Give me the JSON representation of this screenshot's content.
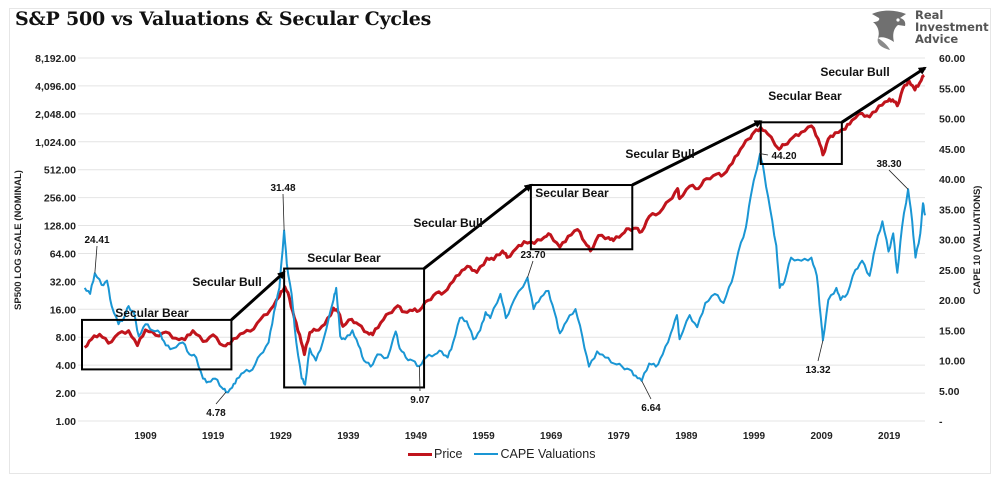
{
  "header": {
    "title": "S&P 500 vs Valuations & Secular Cycles",
    "brand": [
      "Real",
      "Investment",
      "Advice"
    ],
    "brand_icon": "eagle-head-icon"
  },
  "colors": {
    "price": "#c0141c",
    "cape": "#1a96d4",
    "annotation": "#000000",
    "grid": "#e4e4e4",
    "logo": "#666666"
  },
  "chart_data": {
    "type": "line",
    "title": "S&P 500 vs Valuations & Secular Cycles",
    "xlabel": "",
    "ylabel": "SP500 LOG SCALE (NOMINAL)",
    "y2label": "CAPE 10 (VALUATIONS)",
    "x_range": [
      1899.6,
      2024.3
    ],
    "x_ticks": [
      "1909",
      "1919",
      "1929",
      "1939",
      "1949",
      "1959",
      "1969",
      "1979",
      "1989",
      "1999",
      "2009",
      "2019"
    ],
    "y_scale": "log2",
    "ylim": [
      1,
      8192
    ],
    "y_ticks": [
      "1.00",
      "2.00",
      "4.00",
      "8.00",
      "16.00",
      "32.00",
      "64.00",
      "128.00",
      "256.00",
      "512.00",
      "1,024.00",
      "2,048.00",
      "4,096.00",
      "8,192.00"
    ],
    "y2lim": [
      0,
      60
    ],
    "y2_ticks": [
      "-",
      "5.00",
      "10.00",
      "15.00",
      "20.00",
      "25.00",
      "30.00",
      "35.00",
      "40.00",
      "45.00",
      "50.00",
      "55.00",
      "60.00"
    ],
    "grid": true,
    "legend_position": "bottom",
    "legend": [
      "Price",
      "CAPE Valuations"
    ],
    "series": [
      {
        "name": "Price",
        "axis": "left",
        "color": "#c0141c",
        "points": [
          [
            1900.0,
            6.2
          ],
          [
            1901.0,
            7.6
          ],
          [
            1902.2,
            8.6
          ],
          [
            1903.5,
            6.9
          ],
          [
            1905.0,
            8.8
          ],
          [
            1906.5,
            9.4
          ],
          [
            1907.8,
            6.5
          ],
          [
            1909.0,
            9.6
          ],
          [
            1910.5,
            8.4
          ],
          [
            1912.0,
            9.1
          ],
          [
            1913.5,
            7.8
          ],
          [
            1914.8,
            7.5
          ],
          [
            1916.0,
            9.4
          ],
          [
            1917.5,
            7.2
          ],
          [
            1919.0,
            8.5
          ],
          [
            1920.5,
            6.5
          ],
          [
            1921.5,
            6.8
          ],
          [
            1923.0,
            8.7
          ],
          [
            1924.5,
            9.3
          ],
          [
            1926.0,
            12.5
          ],
          [
            1927.5,
            16.0
          ],
          [
            1928.8,
            22.0
          ],
          [
            1929.6,
            28.0
          ],
          [
            1930.3,
            21.0
          ],
          [
            1931.0,
            13.0
          ],
          [
            1931.8,
            8.5
          ],
          [
            1932.5,
            5.2
          ],
          [
            1933.3,
            9.0
          ],
          [
            1934.2,
            9.5
          ],
          [
            1935.5,
            11.0
          ],
          [
            1936.8,
            16.5
          ],
          [
            1937.5,
            15.0
          ],
          [
            1938.2,
            10.5
          ],
          [
            1939.5,
            12.5
          ],
          [
            1940.5,
            11.0
          ],
          [
            1941.8,
            9.0
          ],
          [
            1942.6,
            8.5
          ],
          [
            1943.8,
            11.5
          ],
          [
            1945.0,
            14.5
          ],
          [
            1946.3,
            17.5
          ],
          [
            1947.3,
            15.0
          ],
          [
            1948.5,
            15.5
          ],
          [
            1949.5,
            15.5
          ],
          [
            1950.8,
            20.0
          ],
          [
            1952.0,
            24.0
          ],
          [
            1953.2,
            24.5
          ],
          [
            1954.5,
            32.0
          ],
          [
            1955.8,
            42.0
          ],
          [
            1957.0,
            46.0
          ],
          [
            1958.0,
            40.0
          ],
          [
            1959.5,
            57.0
          ],
          [
            1960.5,
            55.0
          ],
          [
            1961.8,
            68.0
          ],
          [
            1962.5,
            58.0
          ],
          [
            1963.8,
            72.0
          ],
          [
            1965.0,
            86.0
          ],
          [
            1966.5,
            82.0
          ],
          [
            1968.0,
            96.0
          ],
          [
            1968.9,
            102.0
          ],
          [
            1970.3,
            75.0
          ],
          [
            1971.5,
            98.0
          ],
          [
            1972.9,
            116.0
          ],
          [
            1974.0,
            84.0
          ],
          [
            1974.8,
            68.0
          ],
          [
            1976.0,
            100.0
          ],
          [
            1977.5,
            95.0
          ],
          [
            1978.2,
            88.0
          ],
          [
            1979.5,
            103.0
          ],
          [
            1980.5,
            118.0
          ],
          [
            1981.5,
            120.0
          ],
          [
            1982.4,
            110.0
          ],
          [
            1983.5,
            160.0
          ],
          [
            1985.0,
            175.0
          ],
          [
            1986.5,
            240.0
          ],
          [
            1987.7,
            320.0
          ],
          [
            1988.0,
            250.0
          ],
          [
            1989.5,
            340.0
          ],
          [
            1990.8,
            320.0
          ],
          [
            1992.0,
            410.0
          ],
          [
            1993.5,
            460.0
          ],
          [
            1994.5,
            455.0
          ],
          [
            1995.8,
            600.0
          ],
          [
            1997.0,
            850.0
          ],
          [
            1998.2,
            1100.0
          ],
          [
            1999.0,
            1300.0
          ],
          [
            2000.0,
            1460.0
          ],
          [
            2001.0,
            1250.0
          ],
          [
            2002.7,
            850.0
          ],
          [
            2003.5,
            950.0
          ],
          [
            2004.8,
            1150.0
          ],
          [
            2006.0,
            1300.0
          ],
          [
            2007.5,
            1520.0
          ],
          [
            2008.5,
            1100.0
          ],
          [
            2009.2,
            740.0
          ],
          [
            2010.0,
            1100.0
          ],
          [
            2011.0,
            1280.0
          ],
          [
            2012.5,
            1400.0
          ],
          [
            2013.5,
            1750.0
          ],
          [
            2015.0,
            2070.0
          ],
          [
            2016.1,
            1900.0
          ],
          [
            2017.5,
            2500.0
          ],
          [
            2018.8,
            2800.0
          ],
          [
            2019.5,
            2900.0
          ],
          [
            2020.2,
            2500.0
          ],
          [
            2021.0,
            3800.0
          ],
          [
            2021.9,
            4700.0
          ],
          [
            2022.8,
            3700.0
          ],
          [
            2023.5,
            4400.0
          ],
          [
            2024.2,
            5300.0
          ]
        ]
      },
      {
        "name": "CAPE Valuations",
        "axis": "right",
        "color": "#1a96d4",
        "points": [
          [
            1900.0,
            22.0
          ],
          [
            1900.8,
            21.0
          ],
          [
            1901.5,
            24.41
          ],
          [
            1902.5,
            22.5
          ],
          [
            1903.3,
            23.2
          ],
          [
            1904.0,
            19.0
          ],
          [
            1905.0,
            16.0
          ],
          [
            1905.8,
            17.0
          ],
          [
            1906.5,
            19.0
          ],
          [
            1907.3,
            17.8
          ],
          [
            1908.0,
            14.0
          ],
          [
            1909.0,
            16.0
          ],
          [
            1910.0,
            15.0
          ],
          [
            1911.2,
            14.5
          ],
          [
            1912.0,
            12.5
          ],
          [
            1913.0,
            12.0
          ],
          [
            1914.5,
            13.0
          ],
          [
            1915.5,
            11.0
          ],
          [
            1916.5,
            10.5
          ],
          [
            1917.5,
            7.0
          ],
          [
            1918.3,
            6.5
          ],
          [
            1919.3,
            7.0
          ],
          [
            1920.3,
            5.5
          ],
          [
            1920.9,
            4.78
          ],
          [
            1921.8,
            5.5
          ],
          [
            1922.5,
            7.0
          ],
          [
            1923.5,
            8.0
          ],
          [
            1924.8,
            8.5
          ],
          [
            1926.0,
            11.0
          ],
          [
            1927.2,
            13.0
          ],
          [
            1928.0,
            18.0
          ],
          [
            1928.8,
            22.0
          ],
          [
            1929.5,
            31.48
          ],
          [
            1929.9,
            26.0
          ],
          [
            1930.6,
            21.0
          ],
          [
            1931.3,
            13.0
          ],
          [
            1932.1,
            7.0
          ],
          [
            1932.6,
            6.0
          ],
          [
            1933.3,
            12.0
          ],
          [
            1934.2,
            10.0
          ],
          [
            1935.2,
            13.0
          ],
          [
            1936.8,
            20.0
          ],
          [
            1937.2,
            22.0
          ],
          [
            1937.8,
            14.0
          ],
          [
            1938.5,
            13.5
          ],
          [
            1939.6,
            15.0
          ],
          [
            1940.5,
            12.5
          ],
          [
            1941.3,
            10.0
          ],
          [
            1942.3,
            9.0
          ],
          [
            1943.3,
            11.0
          ],
          [
            1944.8,
            10.5
          ],
          [
            1946.0,
            14.8
          ],
          [
            1946.6,
            12.0
          ],
          [
            1947.5,
            10.5
          ],
          [
            1948.5,
            10.0
          ],
          [
            1949.5,
            9.07
          ],
          [
            1950.5,
            10.5
          ],
          [
            1951.8,
            11.0
          ],
          [
            1952.8,
            11.5
          ],
          [
            1953.7,
            10.5
          ],
          [
            1954.5,
            13.0
          ],
          [
            1955.5,
            17.0
          ],
          [
            1956.5,
            16.5
          ],
          [
            1957.5,
            13.5
          ],
          [
            1958.5,
            15.0
          ],
          [
            1959.3,
            18.0
          ],
          [
            1960.0,
            17.0
          ],
          [
            1961.5,
            21.0
          ],
          [
            1962.3,
            17.0
          ],
          [
            1963.5,
            20.0
          ],
          [
            1965.5,
            23.7
          ],
          [
            1966.4,
            18.5
          ],
          [
            1967.5,
            20.5
          ],
          [
            1968.6,
            21.5
          ],
          [
            1969.5,
            18.0
          ],
          [
            1970.3,
            14.5
          ],
          [
            1971.3,
            16.5
          ],
          [
            1972.6,
            18.5
          ],
          [
            1973.6,
            14.0
          ],
          [
            1974.6,
            9.0
          ],
          [
            1975.8,
            11.5
          ],
          [
            1977.0,
            10.5
          ],
          [
            1978.3,
            9.5
          ],
          [
            1979.5,
            9.0
          ],
          [
            1980.6,
            8.5
          ],
          [
            1981.5,
            7.5
          ],
          [
            1982.4,
            6.64
          ],
          [
            1983.5,
            9.5
          ],
          [
            1984.5,
            9.0
          ],
          [
            1985.5,
            11.0
          ],
          [
            1986.7,
            14.5
          ],
          [
            1987.6,
            17.5
          ],
          [
            1988.0,
            13.5
          ],
          [
            1989.5,
            17.5
          ],
          [
            1990.6,
            15.5
          ],
          [
            1991.8,
            19.5
          ],
          [
            1993.2,
            21.0
          ],
          [
            1994.5,
            19.5
          ],
          [
            1995.7,
            23.0
          ],
          [
            1996.7,
            28.0
          ],
          [
            1997.8,
            32.0
          ],
          [
            1998.5,
            37.0
          ],
          [
            1999.9,
            44.2
          ],
          [
            2000.5,
            41.0
          ],
          [
            2001.4,
            35.0
          ],
          [
            2002.3,
            29.0
          ],
          [
            2002.8,
            22.0
          ],
          [
            2003.5,
            23.0
          ],
          [
            2004.5,
            27.0
          ],
          [
            2006.0,
            26.5
          ],
          [
            2007.5,
            27.0
          ],
          [
            2008.3,
            24.0
          ],
          [
            2008.9,
            17.0
          ],
          [
            2009.2,
            13.32
          ],
          [
            2010.0,
            20.0
          ],
          [
            2011.2,
            22.0
          ],
          [
            2011.8,
            20.0
          ],
          [
            2012.8,
            21.0
          ],
          [
            2014.0,
            25.0
          ],
          [
            2015.0,
            26.5
          ],
          [
            2016.1,
            24.0
          ],
          [
            2017.0,
            29.0
          ],
          [
            2018.0,
            33.0
          ],
          [
            2018.9,
            28.0
          ],
          [
            2019.6,
            31.0
          ],
          [
            2020.2,
            24.5
          ],
          [
            2020.9,
            32.0
          ],
          [
            2021.8,
            38.3
          ],
          [
            2022.4,
            33.0
          ],
          [
            2022.9,
            27.0
          ],
          [
            2023.6,
            31.0
          ],
          [
            2024.0,
            36.0
          ],
          [
            2024.3,
            34.0
          ]
        ]
      }
    ],
    "annotations": {
      "value_labels": [
        {
          "text": "24.41",
          "series": "CAPE Valuations",
          "x": 1901.5,
          "y": 24.41
        },
        {
          "text": "4.78",
          "series": "CAPE Valuations",
          "x": 1920.9,
          "y": 4.78
        },
        {
          "text": "31.48",
          "series": "CAPE Valuations",
          "x": 1929.5,
          "y": 31.48
        },
        {
          "text": "9.07",
          "series": "CAPE Valuations",
          "x": 1949.5,
          "y": 9.07
        },
        {
          "text": "23.70",
          "series": "CAPE Valuations",
          "x": 1965.5,
          "y": 23.7
        },
        {
          "text": "6.64",
          "series": "CAPE Valuations",
          "x": 1982.4,
          "y": 6.64
        },
        {
          "text": "44.20",
          "series": "CAPE Valuations",
          "x": 1999.9,
          "y": 44.2
        },
        {
          "text": "13.32",
          "series": "CAPE Valuations",
          "x": 2009.2,
          "y": 13.32
        },
        {
          "text": "38.30",
          "series": "CAPE Valuations",
          "x": 2021.8,
          "y": 38.3
        }
      ],
      "secular_bear_boxes": [
        {
          "label": "Secular Bear",
          "x_start": 1899.6,
          "x_end": 1921.7,
          "price_low": 3.6,
          "price_high": 12.3
        },
        {
          "label": "Secular Bear",
          "x_start": 1929.5,
          "x_end": 1950.2,
          "price_low": 2.3,
          "price_high": 44.0
        },
        {
          "label": "Secular Bear",
          "x_start": 1966.0,
          "x_end": 1981.0,
          "price_low": 71.0,
          "price_high": 350.0
        },
        {
          "label": "Secular Bear",
          "x_start": 2000.0,
          "x_end": 2012.0,
          "price_low": 590.0,
          "price_high": 1660.0
        }
      ],
      "secular_bull_arrows": [
        {
          "label": "Secular Bull",
          "from": [
            1921.7,
            12.3
          ],
          "to": [
            1929.5,
            40.0
          ]
        },
        {
          "label": "Secular Bull",
          "from": [
            1950.2,
            44.0
          ],
          "to": [
            1966.0,
            350.0
          ]
        },
        {
          "label": "Secular Bull",
          "from": [
            1981.0,
            350.0
          ],
          "to": [
            2000.0,
            1700.0
          ]
        },
        {
          "label": "Secular Bull",
          "from": [
            2012.0,
            1660.0
          ],
          "to": [
            2024.3,
            6400.0
          ]
        }
      ]
    }
  }
}
